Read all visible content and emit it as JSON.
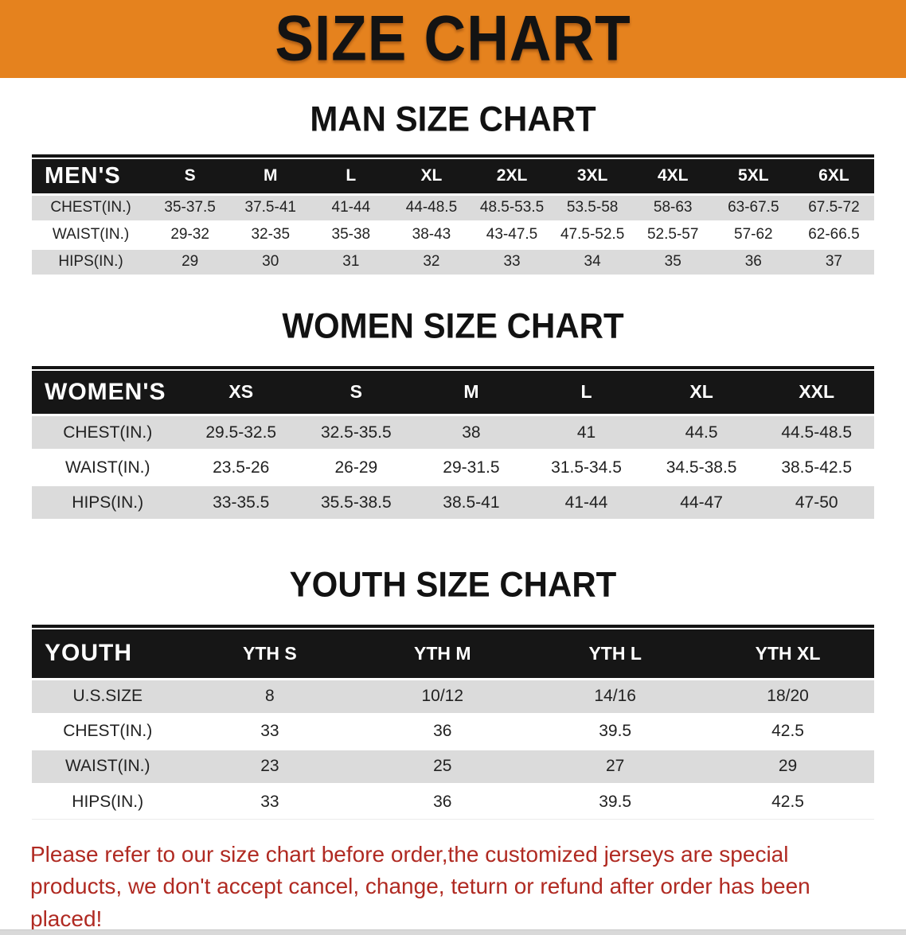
{
  "banner": {
    "title": "SIZE CHART"
  },
  "sections": [
    {
      "id": "men",
      "heading": "MAN SIZE CHART",
      "table": {
        "corner_label": "MEN'S",
        "size_columns": [
          "S",
          "M",
          "L",
          "XL",
          "2XL",
          "3XL",
          "4XL",
          "5XL",
          "6XL"
        ],
        "rows": [
          {
            "label": "CHEST(IN.)",
            "values": [
              "35-37.5",
              "37.5-41",
              "41-44",
              "44-48.5",
              "48.5-53.5",
              "53.5-58",
              "58-63",
              "63-67.5",
              "67.5-72"
            ]
          },
          {
            "label": "WAIST(IN.)",
            "values": [
              "29-32",
              "32-35",
              "35-38",
              "38-43",
              "43-47.5",
              "47.5-52.5",
              "52.5-57",
              "57-62",
              "62-66.5"
            ]
          },
          {
            "label": "HIPS(IN.)",
            "values": [
              "29",
              "30",
              "31",
              "32",
              "33",
              "34",
              "35",
              "36",
              "37"
            ]
          }
        ]
      }
    },
    {
      "id": "women",
      "heading": "WOMEN SIZE CHART",
      "table": {
        "corner_label": "WOMEN'S",
        "size_columns": [
          "XS",
          "S",
          "M",
          "L",
          "XL",
          "XXL"
        ],
        "rows": [
          {
            "label": "CHEST(IN.)",
            "values": [
              "29.5-32.5",
              "32.5-35.5",
              "38",
              "41",
              "44.5",
              "44.5-48.5"
            ]
          },
          {
            "label": "WAIST(IN.)",
            "values": [
              "23.5-26",
              "26-29",
              "29-31.5",
              "31.5-34.5",
              "34.5-38.5",
              "38.5-42.5"
            ]
          },
          {
            "label": "HIPS(IN.)",
            "values": [
              "33-35.5",
              "35.5-38.5",
              "38.5-41",
              "41-44",
              "44-47",
              "47-50"
            ]
          }
        ]
      }
    },
    {
      "id": "youth",
      "heading": "YOUTH SIZE CHART",
      "table": {
        "corner_label": "YOUTH",
        "size_columns": [
          "YTH S",
          "YTH M",
          "YTH L",
          "YTH XL"
        ],
        "rows": [
          {
            "label": "U.S.SIZE",
            "values": [
              "8",
              "10/12",
              "14/16",
              "18/20"
            ]
          },
          {
            "label": "CHEST(IN.)",
            "values": [
              "33",
              "36",
              "39.5",
              "42.5"
            ]
          },
          {
            "label": "WAIST(IN.)",
            "values": [
              "23",
              "25",
              "27",
              "29"
            ]
          },
          {
            "label": "HIPS(IN.)",
            "values": [
              "33",
              "36",
              "39.5",
              "42.5"
            ]
          }
        ]
      }
    }
  ],
  "footer_note": "Please refer to our size chart before order,the customized jerseys are special products, we don't accept cancel, change, teturn or refund after order has been placed!",
  "colors": {
    "banner_orange": "#E5821E",
    "table_header_black": "#161616",
    "row_gray": "#DBDBDB",
    "note_red": "#B02A22"
  }
}
